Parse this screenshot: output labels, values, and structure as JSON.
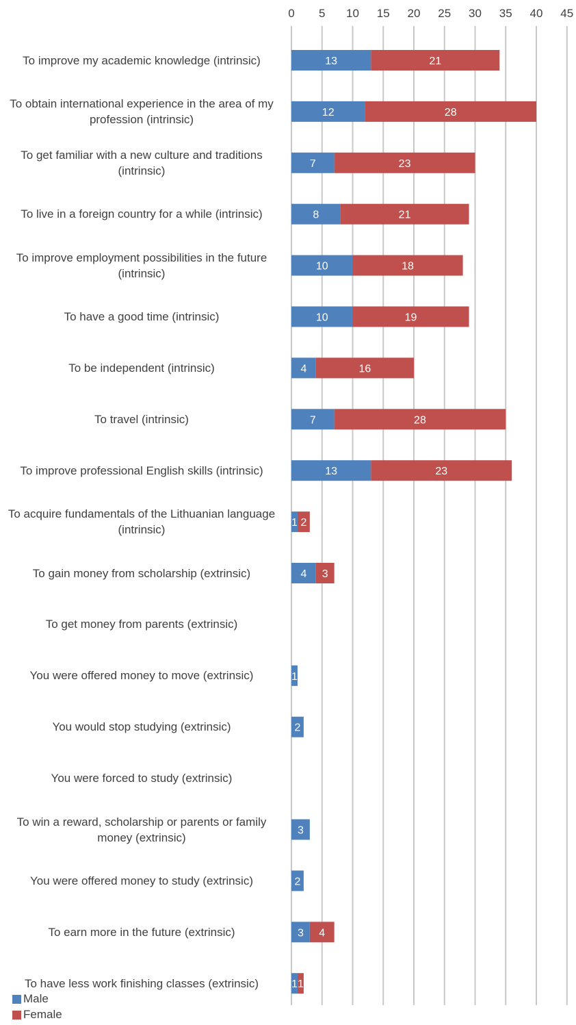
{
  "chart_data": {
    "type": "bar",
    "orientation": "horizontal",
    "stacked": true,
    "categories": [
      "To improve my academic knowledge (intrinsic)",
      "To obtain international experience in the area of my profession (intrinsic)",
      "To get familiar with a new culture and traditions (intrinsic)",
      "To live in a foreign country for a while (intrinsic)",
      "To improve employment possibilities in the future (intrinsic)",
      "To have a good time (intrinsic)",
      "To be independent (intrinsic)",
      "To travel (intrinsic)",
      "To improve professional English skills (intrinsic)",
      "To acquire fundamentals of the Lithuanian language (intrinsic)",
      "To gain money from scholarship (extrinsic)",
      "To get money from parents (extrinsic)",
      "You were offered money to move (extrinsic)",
      "You would stop studying (extrinsic)",
      "You were forced to study (extrinsic)",
      "To win a reward, scholarship or parents or family money (extrinsic)",
      "You were offered money to study (extrinsic)",
      "To earn more in the future (extrinsic)",
      "To have less work finishing classes (extrinsic)"
    ],
    "series": [
      {
        "name": "Male",
        "color": "#4f81bd",
        "values": [
          13,
          12,
          7,
          8,
          10,
          10,
          4,
          7,
          13,
          1,
          4,
          0,
          1,
          2,
          0,
          3,
          2,
          3,
          1
        ]
      },
      {
        "name": "Female",
        "color": "#c0504d",
        "values": [
          21,
          28,
          23,
          21,
          18,
          19,
          16,
          28,
          23,
          2,
          3,
          0,
          0,
          0,
          0,
          0,
          0,
          4,
          1
        ]
      }
    ],
    "xlim": [
      0,
      45
    ],
    "xticks": [
      "0",
      "5",
      "10",
      "15",
      "20",
      "25",
      "30",
      "35",
      "40",
      "45"
    ],
    "axis_position": "top",
    "grid": true,
    "legend_position": "bottom-left",
    "data_labels": true
  }
}
